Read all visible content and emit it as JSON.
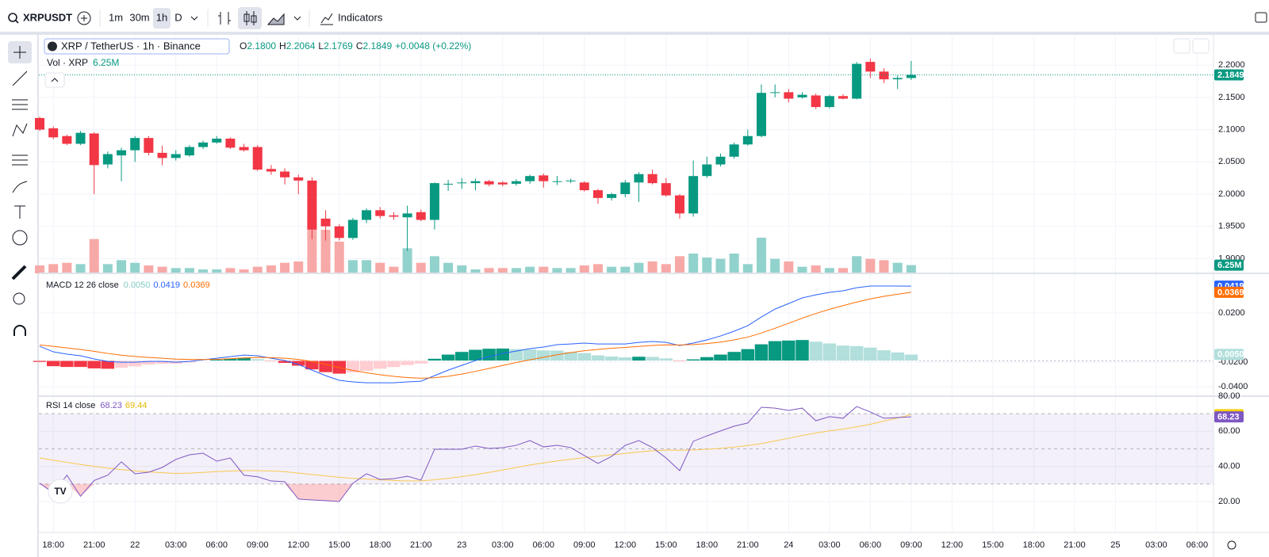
{
  "toolbar": {
    "symbol": "XRPUSDT",
    "intervals": [
      "1m",
      "30m",
      "1h",
      "D"
    ],
    "active_interval": 2,
    "indicators": "Indicators"
  },
  "legend": {
    "title": "XRP / TetherUS · 1h · Binance",
    "ohlc": [
      {
        "key": "O",
        "value": "2.1800"
      },
      {
        "key": "H",
        "value": "2.2064"
      },
      {
        "key": "L",
        "value": "2.1769"
      },
      {
        "key": "C",
        "value": "2.1849"
      }
    ],
    "change": "+0.0048 (+0.22%)",
    "volume_title": "Vol · XRP",
    "volume_value": "6.25M",
    "macd_title": "MACD 12 26 close",
    "macd_values": [
      "0.0050",
      "0.0419",
      "0.0369"
    ],
    "rsi_title": "RSI 14 close",
    "rsi_values": [
      "68.23",
      "69.44"
    ]
  },
  "chart_data": [
    {
      "type": "candlestick",
      "up_color": "#089981",
      "down_color": "#f23645",
      "volume_up_color": "#92d2cc",
      "volume_down_color": "#f7a9a7",
      "xlim": [
        -0.06,
        86.2
      ],
      "ylim": [
        1.8771,
        2.2457
      ],
      "volume_ylim": [
        0,
        180
      ],
      "yticks": [
        {
          "value": 1.9,
          "label": "1.9000"
        },
        {
          "value": 1.95,
          "label": "1.9500"
        },
        {
          "value": 2,
          "label": "2.0000"
        },
        {
          "value": 2.05,
          "label": "2.0500"
        },
        {
          "value": 2.1,
          "label": "2.1000"
        },
        {
          "value": 2.15,
          "label": "2.1500"
        },
        {
          "value": 2.2,
          "label": "2.2000"
        }
      ],
      "xticks": [
        {
          "value": 1,
          "label": "18:00"
        },
        {
          "value": 4,
          "label": "21:00"
        },
        {
          "value": 7,
          "label": "22"
        },
        {
          "value": 10,
          "label": "03:00"
        },
        {
          "value": 13,
          "label": "06:00"
        },
        {
          "value": 16,
          "label": "09:00"
        },
        {
          "value": 19,
          "label": "12:00"
        },
        {
          "value": 22,
          "label": "15:00"
        },
        {
          "value": 25,
          "label": "18:00"
        },
        {
          "value": 28,
          "label": "21:00"
        },
        {
          "value": 31,
          "label": "23"
        },
        {
          "value": 34,
          "label": "03:00"
        },
        {
          "value": 37,
          "label": "06:00"
        },
        {
          "value": 40,
          "label": "09:00"
        },
        {
          "value": 43,
          "label": "12:00"
        },
        {
          "value": 46,
          "label": "15:00"
        },
        {
          "value": 49,
          "label": "18:00"
        },
        {
          "value": 52,
          "label": "21:00"
        },
        {
          "value": 55,
          "label": "24"
        },
        {
          "value": 58,
          "label": "03:00"
        },
        {
          "value": 61,
          "label": "06:00"
        },
        {
          "value": 64,
          "label": "09:00"
        },
        {
          "value": 67,
          "label": "12:00"
        },
        {
          "value": 70,
          "label": "15:00"
        },
        {
          "value": 73,
          "label": "18:00"
        },
        {
          "value": 76,
          "label": "21:00"
        },
        {
          "value": 79,
          "label": "25"
        },
        {
          "value": 82,
          "label": "03:00"
        },
        {
          "value": 85,
          "label": "06:00"
        }
      ],
      "open": [
        2.118,
        2.102,
        2.09,
        2.078,
        2.094,
        2.046,
        2.06,
        2.068,
        2.087,
        2.064,
        2.056,
        2.06,
        2.073,
        2.08,
        2.086,
        2.073,
        2.073,
        2.039,
        2.035,
        2.026,
        2.021,
        1.962,
        1.95,
        1.932,
        1.96,
        1.975,
        1.967,
        1.964,
        1.972,
        1.96,
        2.016,
        2.017,
        2.017,
        2.02,
        2.018,
        2.016,
        2.02,
        2.029,
        2.02,
        2.02,
        2.018,
        2.006,
        1.994,
        2.0,
        2.018,
        2.031,
        2.017,
        1.998,
        1.97,
        2.028,
        2.046,
        2.058,
        2.077,
        2.09,
        2.157,
        2.158,
        2.15,
        2.153,
        2.135,
        2.152,
        2.148,
        2.205,
        2.19,
        2.178,
        2.18
      ],
      "high": [
        2.12,
        2.105,
        2.092,
        2.098,
        2.096,
        2.066,
        2.072,
        2.09,
        2.09,
        2.075,
        2.068,
        2.076,
        2.083,
        2.09,
        2.088,
        2.078,
        2.076,
        2.045,
        2.04,
        2.03,
        2.026,
        1.975,
        1.953,
        1.963,
        1.978,
        1.98,
        1.972,
        1.982,
        1.976,
        2.018,
        2.022,
        2.025,
        2.024,
        2.022,
        2.02,
        2.023,
        2.03,
        2.032,
        2.028,
        2.024,
        2.02,
        2.008,
        2.002,
        2.022,
        2.034,
        2.038,
        2.025,
        2.0,
        2.052,
        2.058,
        2.063,
        2.08,
        2.1,
        2.17,
        2.17,
        2.163,
        2.158,
        2.156,
        2.154,
        2.155,
        2.205,
        2.21,
        2.195,
        2.184,
        2.2064
      ],
      "low": [
        2.098,
        2.085,
        2.076,
        2.076,
        2.0,
        2.04,
        2.02,
        2.05,
        2.06,
        2.045,
        2.052,
        2.058,
        2.07,
        2.078,
        2.07,
        2.066,
        2.036,
        2.03,
        2.015,
        2.0,
        1.93,
        1.928,
        1.928,
        1.929,
        1.955,
        1.962,
        1.96,
        1.912,
        1.958,
        1.945,
        2.005,
        2.008,
        2.006,
        2.012,
        2.012,
        2.013,
        2.016,
        2.01,
        2.014,
        2.017,
        2.004,
        1.985,
        1.99,
        1.995,
        1.988,
        2.015,
        1.996,
        1.962,
        1.965,
        2.025,
        2.043,
        2.055,
        2.075,
        2.088,
        2.15,
        2.142,
        2.148,
        2.132,
        2.133,
        2.147,
        2.147,
        2.18,
        2.172,
        2.163,
        2.1769
      ],
      "close": [
        2.1,
        2.088,
        2.078,
        2.095,
        2.045,
        2.062,
        2.068,
        2.087,
        2.064,
        2.056,
        2.062,
        2.073,
        2.08,
        2.086,
        2.072,
        2.068,
        2.038,
        2.035,
        2.026,
        2.021,
        1.945,
        1.95,
        1.932,
        1.96,
        1.975,
        1.966,
        1.965,
        1.97,
        1.96,
        2.017,
        2.016,
        2.018,
        2.02,
        2.015,
        2.015,
        2.02,
        2.028,
        2.02,
        2.02,
        2.021,
        2.006,
        1.994,
        2.0,
        2.018,
        2.031,
        2.017,
        1.998,
        1.97,
        2.028,
        2.046,
        2.058,
        2.077,
        2.09,
        2.157,
        2.158,
        2.148,
        2.154,
        2.135,
        2.152,
        2.148,
        2.202,
        2.19,
        2.178,
        2.18,
        2.1849
      ],
      "volume": [
        6,
        7,
        8,
        7,
        26,
        7,
        10,
        8,
        6,
        5,
        4,
        4,
        3,
        3,
        4,
        3,
        5,
        6,
        8,
        9,
        45,
        33,
        24,
        10,
        10,
        8,
        5,
        19,
        8,
        13,
        8,
        6,
        3,
        4,
        4,
        4,
        5,
        5,
        4,
        4,
        6,
        7,
        5,
        5,
        8,
        9,
        7,
        13,
        15,
        12,
        11,
        15,
        7,
        27,
        11,
        9,
        5,
        6,
        4,
        4,
        13,
        11,
        10,
        8,
        6.25
      ]
    },
    {
      "type": "macd",
      "ylim": [
        -0.0477,
        0.0523
      ],
      "hist_ylim": [
        -0.028,
        0.069
      ],
      "yticks": [
        {
          "value": 0.02,
          "label": "0.0200"
        },
        {
          "value": -0.02,
          "label": "-0.0200"
        },
        {
          "value": -0.04,
          "label": "-0.0400"
        }
      ],
      "series": [
        {
          "color": "#2962ff",
          "values": [
            -0.0071,
            -0.0116,
            -0.0135,
            -0.0148,
            -0.0174,
            -0.0194,
            -0.02,
            -0.02,
            -0.0194,
            -0.0194,
            -0.02,
            -0.0194,
            -0.0181,
            -0.0168,
            -0.0155,
            -0.0142,
            -0.0148,
            -0.0168,
            -0.0187,
            -0.0219,
            -0.0265,
            -0.031,
            -0.0348,
            -0.0361,
            -0.0368,
            -0.0368,
            -0.0368,
            -0.0361,
            -0.0355,
            -0.031,
            -0.0265,
            -0.0226,
            -0.0187,
            -0.0155,
            -0.0129,
            -0.011,
            -0.009,
            -0.0077,
            -0.0058,
            -0.0052,
            -0.0045,
            -0.0052,
            -0.0052,
            -0.0052,
            -0.0039,
            -0.0032,
            -0.0039,
            -0.0065,
            -0.0045,
            -0.0019,
            0.0013,
            0.0052,
            0.0097,
            0.0168,
            0.0232,
            0.0277,
            0.0323,
            0.0348,
            0.0368,
            0.0381,
            0.0406,
            0.042,
            0.042,
            0.042,
            0.0419
          ]
        },
        {
          "color": "#ff6d00",
          "values": [
            -0.006,
            -0.0071,
            -0.0084,
            -0.0097,
            -0.0112,
            -0.0129,
            -0.0143,
            -0.0154,
            -0.0162,
            -0.0168,
            -0.0175,
            -0.0178,
            -0.0179,
            -0.0177,
            -0.0172,
            -0.0166,
            -0.0162,
            -0.0163,
            -0.0168,
            -0.0178,
            -0.0195,
            -0.0218,
            -0.0244,
            -0.0267,
            -0.0287,
            -0.0303,
            -0.0316,
            -0.0325,
            -0.0331,
            -0.0327,
            -0.0315,
            -0.0297,
            -0.0275,
            -0.0251,
            -0.0227,
            -0.0203,
            -0.0181,
            -0.016,
            -0.014,
            -0.0122,
            -0.0107,
            -0.0096,
            -0.0087,
            -0.008,
            -0.0072,
            -0.0064,
            -0.0059,
            -0.006,
            -0.0057,
            -0.0049,
            -0.0037,
            -0.0019,
            0.0004,
            0.0037,
            0.0076,
            0.0116,
            0.0158,
            0.0196,
            0.023,
            0.026,
            0.0289,
            0.0315,
            0.0336,
            0.0353,
            0.0369
          ]
        }
      ],
      "histogram": [
        -0.0011,
        -0.0045,
        -0.0051,
        -0.0051,
        -0.0062,
        -0.0065,
        -0.0057,
        -0.0046,
        -0.0032,
        -0.0026,
        -0.0025,
        -0.0016,
        -0.0002,
        0.0009,
        0.0017,
        0.0024,
        0.0014,
        -0.0005,
        -0.0019,
        -0.0041,
        -0.007,
        -0.0092,
        -0.0104,
        -0.0094,
        -0.0081,
        -0.0065,
        -0.0052,
        -0.0036,
        -0.0024,
        0.0017,
        0.005,
        0.0071,
        0.0088,
        0.0096,
        0.0098,
        0.0093,
        0.0091,
        0.0083,
        0.0082,
        0.007,
        0.0062,
        0.0044,
        0.0035,
        0.0028,
        0.0033,
        0.0032,
        0.002,
        -0.0005,
        0.0012,
        0.003,
        0.005,
        0.0071,
        0.0093,
        0.0131,
        0.0156,
        0.0161,
        0.0165,
        0.0152,
        0.0138,
        0.0121,
        0.0117,
        0.0105,
        0.0084,
        0.0067,
        0.005
      ],
      "hist_colors": [
        "#089981",
        "#b2dfdb",
        "#f23645",
        "#ffcdd2"
      ]
    },
    {
      "type": "rsi",
      "ylim": [
        2.4,
        80
      ],
      "bands": [
        70,
        50,
        30
      ],
      "band_color": "#7e57c2",
      "yticks": [
        {
          "value": 20,
          "label": "20.00"
        },
        {
          "value": 40,
          "label": "40.00"
        },
        {
          "value": 60,
          "label": "60.00"
        },
        {
          "value": 80,
          "label": "80.00"
        }
      ],
      "series": [
        {
          "color": "#7e57c2",
          "values": [
            30.4,
            25,
            35,
            23,
            32,
            35,
            42.6,
            35.8,
            36.7,
            39.4,
            44,
            46.6,
            47.5,
            43,
            44.8,
            35,
            34.1,
            31.7,
            31.3,
            21.4,
            20.9,
            20.5,
            20,
            30.4,
            35.8,
            32.6,
            33,
            34.4,
            32.2,
            49.8,
            49.8,
            49.8,
            51.6,
            50.2,
            50.7,
            52,
            54.7,
            51.1,
            52,
            50.7,
            46.2,
            41.7,
            45.7,
            52,
            54.7,
            50.7,
            44.8,
            37.6,
            54.3,
            57.4,
            60.2,
            62.9,
            64.7,
            73.7,
            73.2,
            71.9,
            73.2,
            66,
            68.3,
            67.4,
            74.1,
            71,
            67.4,
            67.8,
            68.23
          ]
        },
        {
          "color": "#f9c74f",
          "values": [
            44.8,
            43.5,
            42.3,
            41.1,
            40,
            39,
            38.2,
            37.5,
            36.9,
            36.4,
            36,
            36.2,
            36.6,
            37,
            37.4,
            37.6,
            37.6,
            37.4,
            37,
            36.2,
            35.4,
            34.6,
            33.8,
            33.2,
            32.8,
            32.4,
            32,
            31.7,
            31.8,
            32.4,
            33.2,
            34.2,
            35.3,
            36.6,
            38,
            39.4,
            40.8,
            42,
            43.1,
            44.1,
            45,
            45.8,
            46.6,
            47.4,
            48.2,
            48.9,
            49.3,
            49.2,
            49.4,
            49.8,
            50.3,
            51,
            51.9,
            53,
            54.5,
            56,
            57.6,
            59,
            60.2,
            61.3,
            62.5,
            64,
            65.8,
            67.6,
            69.44
          ]
        }
      ]
    }
  ]
}
